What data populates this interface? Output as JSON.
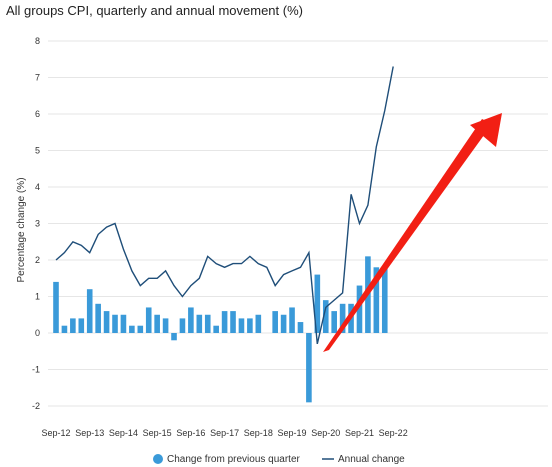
{
  "chart_data": {
    "type": "bar",
    "title": "All groups CPI, quarterly and annual movement (%)",
    "ylabel": "Percentage change (%)",
    "xlabel": "",
    "ylim": [
      -2,
      8
    ],
    "y_ticks": [
      "8",
      "7",
      "6",
      "5",
      "4",
      "3",
      "2",
      "1",
      "0",
      "-1",
      "-2"
    ],
    "grid": true,
    "legend_position": "bottom",
    "x_tick_labels": [
      "Sep-12",
      "Sep-13",
      "Sep-14",
      "Sep-15",
      "Sep-16",
      "Sep-17",
      "Sep-18",
      "Sep-19",
      "Sep-20",
      "Sep-21",
      "Sep-22"
    ],
    "categories": [
      "Sep-12",
      "Dec-12",
      "Mar-13",
      "Jun-13",
      "Sep-13",
      "Dec-13",
      "Mar-14",
      "Jun-14",
      "Sep-14",
      "Dec-14",
      "Mar-15",
      "Jun-15",
      "Sep-15",
      "Dec-15",
      "Mar-16",
      "Jun-16",
      "Sep-16",
      "Dec-16",
      "Mar-17",
      "Jun-17",
      "Sep-17",
      "Dec-17",
      "Mar-18",
      "Jun-18",
      "Sep-18",
      "Dec-18",
      "Mar-19",
      "Jun-19",
      "Sep-19",
      "Dec-19",
      "Mar-20",
      "Jun-20",
      "Sep-20",
      "Dec-20",
      "Mar-21",
      "Jun-21",
      "Sep-21",
      "Dec-21",
      "Mar-22",
      "Jun-22",
      "Sep-22"
    ],
    "series": [
      {
        "name": "Change from previous quarter",
        "kind": "bar",
        "color": "#3a9ad9",
        "values": [
          1.4,
          0.2,
          0.4,
          0.4,
          1.2,
          0.8,
          0.6,
          0.5,
          0.5,
          0.2,
          0.2,
          0.7,
          0.5,
          0.4,
          -0.2,
          0.4,
          0.7,
          0.5,
          0.5,
          0.2,
          0.6,
          0.6,
          0.4,
          0.4,
          0.5,
          null,
          0.6,
          0.5,
          0.7,
          0.3,
          -1.9,
          1.6,
          0.9,
          0.6,
          0.8,
          0.8,
          1.3,
          2.1,
          1.8,
          1.8,
          null
        ]
      },
      {
        "name": "Annual change",
        "kind": "line",
        "color": "#1f4e79",
        "values": [
          2.0,
          2.2,
          2.5,
          2.4,
          2.2,
          2.7,
          2.9,
          3.0,
          2.3,
          1.7,
          1.3,
          1.5,
          1.5,
          1.7,
          1.3,
          1.0,
          1.3,
          1.5,
          2.1,
          1.9,
          1.8,
          1.9,
          1.9,
          2.1,
          1.9,
          1.8,
          1.3,
          1.6,
          1.7,
          1.8,
          2.2,
          -0.3,
          0.7,
          0.9,
          1.1,
          3.8,
          3.0,
          3.5,
          5.1,
          6.1,
          7.3
        ]
      }
    ]
  }
}
